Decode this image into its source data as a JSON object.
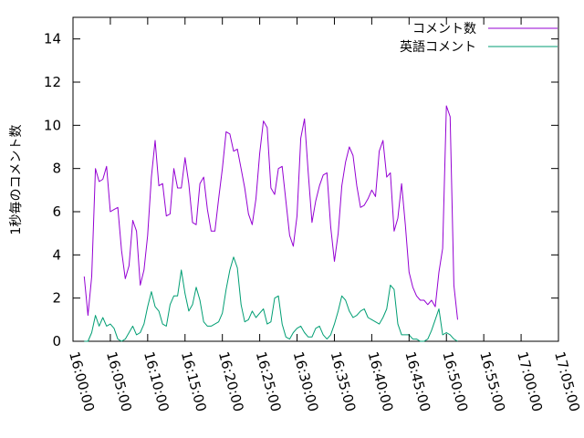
{
  "chart_data": {
    "type": "line",
    "title": "",
    "xlabel": "",
    "ylabel": "1秒毎のコメント数",
    "xlim_minutes": [
      0,
      65
    ],
    "ylim": [
      0,
      15
    ],
    "x_tick_labels": [
      "16:00:00",
      "16:05:00",
      "16:10:00",
      "16:15:00",
      "16:20:00",
      "16:25:00",
      "16:30:00",
      "16:35:00",
      "16:40:00",
      "16:45:00",
      "16:50:00",
      "16:55:00",
      "17:00:00",
      "17:05:00"
    ],
    "y_ticks": [
      0,
      2,
      4,
      6,
      8,
      10,
      12,
      14
    ],
    "grid": false,
    "legend_position": "top-right",
    "series": [
      {
        "name": "コメント数",
        "color": "#9400d3",
        "points": [
          [
            1.5,
            3.0
          ],
          [
            2.0,
            1.2
          ],
          [
            2.5,
            3.0
          ],
          [
            3.0,
            8.0
          ],
          [
            3.5,
            7.4
          ],
          [
            4.0,
            7.5
          ],
          [
            4.5,
            8.1
          ],
          [
            5.0,
            6.0
          ],
          [
            5.5,
            6.1
          ],
          [
            6.0,
            6.2
          ],
          [
            6.5,
            4.2
          ],
          [
            7.0,
            2.9
          ],
          [
            7.5,
            3.5
          ],
          [
            8.0,
            5.6
          ],
          [
            8.5,
            5.1
          ],
          [
            9.0,
            2.6
          ],
          [
            9.5,
            3.3
          ],
          [
            10.0,
            4.9
          ],
          [
            10.5,
            7.6
          ],
          [
            11.0,
            9.3
          ],
          [
            11.5,
            7.2
          ],
          [
            12.0,
            7.3
          ],
          [
            12.5,
            5.8
          ],
          [
            13.0,
            5.9
          ],
          [
            13.5,
            8.0
          ],
          [
            14.0,
            7.1
          ],
          [
            14.5,
            7.1
          ],
          [
            15.0,
            8.5
          ],
          [
            15.5,
            7.3
          ],
          [
            16.0,
            5.5
          ],
          [
            16.5,
            5.4
          ],
          [
            17.0,
            7.3
          ],
          [
            17.5,
            7.6
          ],
          [
            18.0,
            6.1
          ],
          [
            18.5,
            5.1
          ],
          [
            19.0,
            5.1
          ],
          [
            19.5,
            6.6
          ],
          [
            20.0,
            8.0
          ],
          [
            20.5,
            9.7
          ],
          [
            21.0,
            9.6
          ],
          [
            21.5,
            8.8
          ],
          [
            22.0,
            8.9
          ],
          [
            22.5,
            8.0
          ],
          [
            23.0,
            7.1
          ],
          [
            23.5,
            5.9
          ],
          [
            24.0,
            5.4
          ],
          [
            24.5,
            6.6
          ],
          [
            25.0,
            8.7
          ],
          [
            25.5,
            10.2
          ],
          [
            26.0,
            9.9
          ],
          [
            26.5,
            7.1
          ],
          [
            27.0,
            6.8
          ],
          [
            27.5,
            8.0
          ],
          [
            28.0,
            8.1
          ],
          [
            28.5,
            6.5
          ],
          [
            29.0,
            4.9
          ],
          [
            29.5,
            4.4
          ],
          [
            30.0,
            5.8
          ],
          [
            30.5,
            9.4
          ],
          [
            31.0,
            10.3
          ],
          [
            31.5,
            7.8
          ],
          [
            32.0,
            5.5
          ],
          [
            32.5,
            6.5
          ],
          [
            33.0,
            7.2
          ],
          [
            33.5,
            7.7
          ],
          [
            34.0,
            7.8
          ],
          [
            34.5,
            5.3
          ],
          [
            35.0,
            3.7
          ],
          [
            35.5,
            5.0
          ],
          [
            36.0,
            7.2
          ],
          [
            36.5,
            8.3
          ],
          [
            37.0,
            9.0
          ],
          [
            37.5,
            8.6
          ],
          [
            38.0,
            7.2
          ],
          [
            38.5,
            6.2
          ],
          [
            39.0,
            6.3
          ],
          [
            39.5,
            6.6
          ],
          [
            40.0,
            7.0
          ],
          [
            40.5,
            6.7
          ],
          [
            41.0,
            8.8
          ],
          [
            41.5,
            9.3
          ],
          [
            42.0,
            7.6
          ],
          [
            42.5,
            7.8
          ],
          [
            43.0,
            5.1
          ],
          [
            43.5,
            5.7
          ],
          [
            44.0,
            7.3
          ],
          [
            44.5,
            5.4
          ],
          [
            45.0,
            3.2
          ],
          [
            45.5,
            2.5
          ],
          [
            46.0,
            2.1
          ],
          [
            46.5,
            1.9
          ],
          [
            47.0,
            1.9
          ],
          [
            47.5,
            1.7
          ],
          [
            48.0,
            1.9
          ],
          [
            48.5,
            1.6
          ],
          [
            49.0,
            3.2
          ],
          [
            49.5,
            4.3
          ],
          [
            50.0,
            10.9
          ],
          [
            50.5,
            10.4
          ],
          [
            51.0,
            2.6
          ],
          [
            51.5,
            1.0
          ]
        ]
      },
      {
        "name": "英語コメント",
        "color": "#009e73",
        "points": [
          [
            1.5,
            0.0
          ],
          [
            2.0,
            0.0
          ],
          [
            2.5,
            0.4
          ],
          [
            3.0,
            1.2
          ],
          [
            3.5,
            0.7
          ],
          [
            4.0,
            1.1
          ],
          [
            4.5,
            0.7
          ],
          [
            5.0,
            0.8
          ],
          [
            5.5,
            0.6
          ],
          [
            6.0,
            0.1
          ],
          [
            6.5,
            0.0
          ],
          [
            7.0,
            0.1
          ],
          [
            7.5,
            0.4
          ],
          [
            8.0,
            0.7
          ],
          [
            8.5,
            0.3
          ],
          [
            9.0,
            0.4
          ],
          [
            9.5,
            0.8
          ],
          [
            10.0,
            1.6
          ],
          [
            10.5,
            2.3
          ],
          [
            11.0,
            1.6
          ],
          [
            11.5,
            1.4
          ],
          [
            12.0,
            0.8
          ],
          [
            12.5,
            0.7
          ],
          [
            13.0,
            1.7
          ],
          [
            13.5,
            2.1
          ],
          [
            14.0,
            2.1
          ],
          [
            14.5,
            3.3
          ],
          [
            15.0,
            2.2
          ],
          [
            15.5,
            1.4
          ],
          [
            16.0,
            1.7
          ],
          [
            16.5,
            2.5
          ],
          [
            17.0,
            1.9
          ],
          [
            17.5,
            0.9
          ],
          [
            18.0,
            0.7
          ],
          [
            18.5,
            0.7
          ],
          [
            19.0,
            0.8
          ],
          [
            19.5,
            0.9
          ],
          [
            20.0,
            1.3
          ],
          [
            20.5,
            2.4
          ],
          [
            21.0,
            3.3
          ],
          [
            21.5,
            3.9
          ],
          [
            22.0,
            3.4
          ],
          [
            22.5,
            1.7
          ],
          [
            23.0,
            0.9
          ],
          [
            23.5,
            1.0
          ],
          [
            24.0,
            1.4
          ],
          [
            24.5,
            1.1
          ],
          [
            25.0,
            1.3
          ],
          [
            25.5,
            1.5
          ],
          [
            26.0,
            0.8
          ],
          [
            26.5,
            0.9
          ],
          [
            27.0,
            2.0
          ],
          [
            27.5,
            2.1
          ],
          [
            28.0,
            0.8
          ],
          [
            28.5,
            0.2
          ],
          [
            29.0,
            0.1
          ],
          [
            29.5,
            0.4
          ],
          [
            30.0,
            0.6
          ],
          [
            30.5,
            0.7
          ],
          [
            31.0,
            0.4
          ],
          [
            31.5,
            0.2
          ],
          [
            32.0,
            0.2
          ],
          [
            32.5,
            0.6
          ],
          [
            33.0,
            0.7
          ],
          [
            33.5,
            0.3
          ],
          [
            34.0,
            0.1
          ],
          [
            34.5,
            0.3
          ],
          [
            35.0,
            0.8
          ],
          [
            35.5,
            1.4
          ],
          [
            36.0,
            2.1
          ],
          [
            36.5,
            1.9
          ],
          [
            37.0,
            1.4
          ],
          [
            37.5,
            1.1
          ],
          [
            38.0,
            1.2
          ],
          [
            38.5,
            1.4
          ],
          [
            39.0,
            1.5
          ],
          [
            39.5,
            1.1
          ],
          [
            40.0,
            1.0
          ],
          [
            40.5,
            0.9
          ],
          [
            41.0,
            0.8
          ],
          [
            41.5,
            1.1
          ],
          [
            42.0,
            1.5
          ],
          [
            42.5,
            2.6
          ],
          [
            43.0,
            2.4
          ],
          [
            43.5,
            0.8
          ],
          [
            44.0,
            0.3
          ],
          [
            44.5,
            0.3
          ],
          [
            45.0,
            0.3
          ],
          [
            45.5,
            0.1
          ],
          [
            46.0,
            0.1
          ],
          [
            46.5,
            0.0
          ],
          [
            47.0,
            0.0
          ],
          [
            47.5,
            0.1
          ],
          [
            48.0,
            0.5
          ],
          [
            48.5,
            1.0
          ],
          [
            49.0,
            1.5
          ],
          [
            49.5,
            0.3
          ],
          [
            50.0,
            0.4
          ],
          [
            50.5,
            0.3
          ],
          [
            51.0,
            0.1
          ],
          [
            51.5,
            0.0
          ]
        ]
      }
    ]
  }
}
